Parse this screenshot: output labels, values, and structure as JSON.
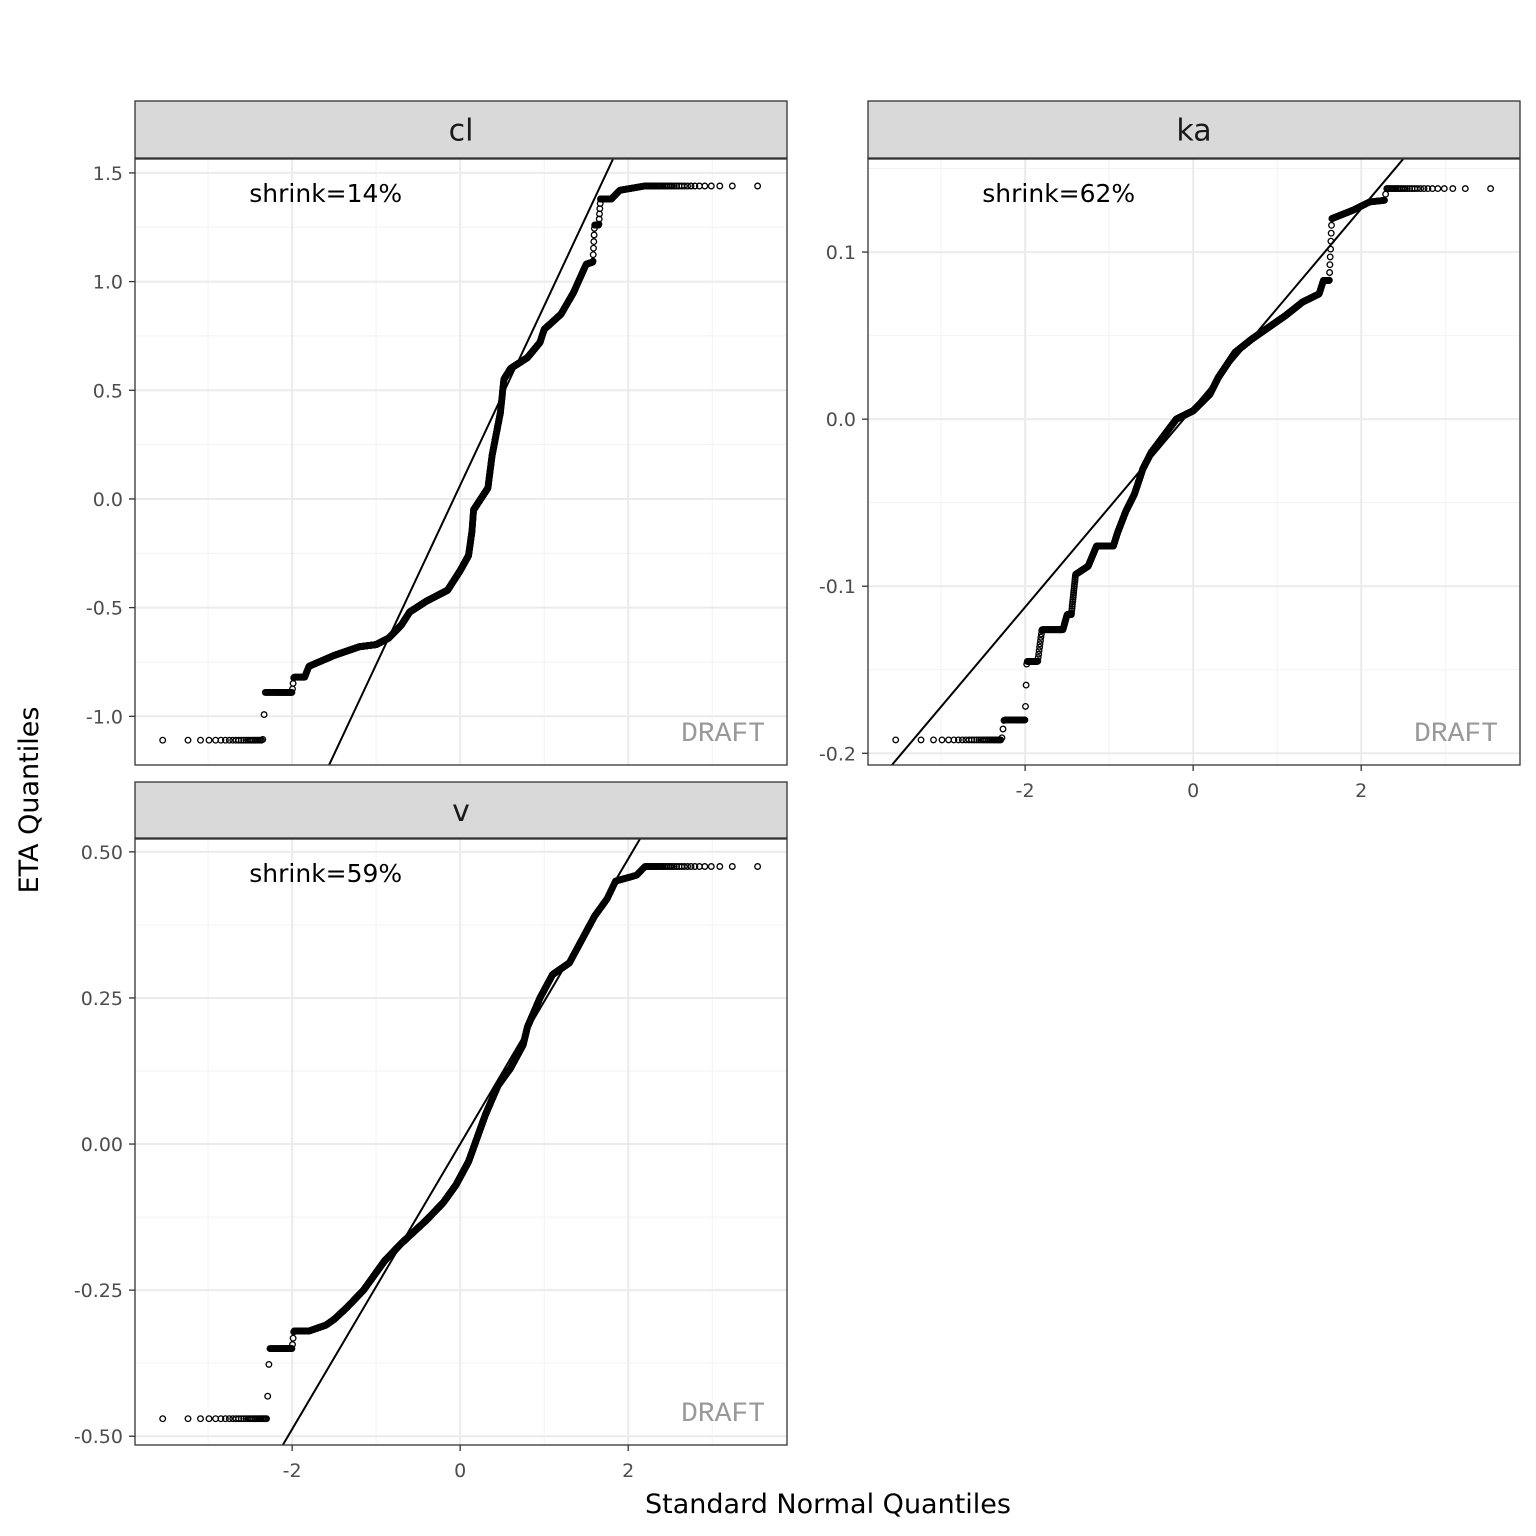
{
  "chart_data": {
    "type": "scatter",
    "subtype": "qq-plot-faceted",
    "xlabel": "Standard Normal Quantiles",
    "ylabel": "ETA Quantiles",
    "watermark": "DRAFT",
    "n_points": 2500,
    "xlim": [
      -3.87,
      3.89
    ],
    "x_ticks": [
      -2,
      0,
      2
    ],
    "x_tick_labels": [
      "-2",
      "0",
      "2"
    ],
    "x_minor": [
      -3,
      -1,
      1,
      3
    ],
    "panels": [
      {
        "name": "cl",
        "annotation": "shrink=14%",
        "ylim": [
          -1.224,
          1.564
        ],
        "y_ticks": [
          -1.0,
          -0.5,
          0.0,
          0.5,
          1.0,
          1.5
        ],
        "y_tick_labels": [
          "-1.0",
          "-0.5",
          "0.0",
          "0.5",
          "1.0",
          "1.5"
        ],
        "reference_line": {
          "intercept": 0.063,
          "slope": 0.825
        },
        "quantile_anchors": [
          [
            -3.6,
            -1.11
          ],
          [
            -2.35,
            -1.11
          ],
          [
            -2.32,
            -0.89
          ],
          [
            -2.0,
            -0.89
          ],
          [
            -1.98,
            -0.82
          ],
          [
            -1.85,
            -0.82
          ],
          [
            -1.8,
            -0.77
          ],
          [
            -1.5,
            -0.72
          ],
          [
            -1.35,
            -0.7
          ],
          [
            -1.2,
            -0.68
          ],
          [
            -1.0,
            -0.67
          ],
          [
            -0.85,
            -0.64
          ],
          [
            -0.7,
            -0.58
          ],
          [
            -0.6,
            -0.52
          ],
          [
            -0.4,
            -0.47
          ],
          [
            -0.25,
            -0.44
          ],
          [
            -0.15,
            -0.42
          ],
          [
            0.0,
            -0.33
          ],
          [
            0.1,
            -0.26
          ],
          [
            0.14,
            -0.15
          ],
          [
            0.16,
            -0.05
          ],
          [
            0.33,
            0.05
          ],
          [
            0.38,
            0.2
          ],
          [
            0.48,
            0.4
          ],
          [
            0.52,
            0.55
          ],
          [
            0.6,
            0.6
          ],
          [
            0.8,
            0.65
          ],
          [
            0.95,
            0.72
          ],
          [
            1.0,
            0.78
          ],
          [
            1.2,
            0.85
          ],
          [
            1.35,
            0.95
          ],
          [
            1.5,
            1.08
          ],
          [
            1.58,
            1.09
          ],
          [
            1.6,
            1.26
          ],
          [
            1.65,
            1.26
          ],
          [
            1.67,
            1.38
          ],
          [
            1.8,
            1.38
          ],
          [
            1.9,
            1.42
          ],
          [
            2.2,
            1.44
          ],
          [
            3.6,
            1.44
          ]
        ]
      },
      {
        "name": "ka",
        "annotation": "shrink=62%",
        "ylim": [
          -0.207,
          0.1557
        ],
        "y_ticks": [
          -0.2,
          -0.1,
          0.0,
          0.1
        ],
        "y_tick_labels": [
          "-0.2",
          "-0.1",
          "0.0",
          "0.1"
        ],
        "reference_line": {
          "intercept": 0.0067,
          "slope": 0.0596
        },
        "quantile_anchors": [
          [
            -3.6,
            -0.192
          ],
          [
            -2.28,
            -0.192
          ],
          [
            -2.25,
            -0.18
          ],
          [
            -2.0,
            -0.18
          ],
          [
            -1.98,
            -0.145
          ],
          [
            -1.85,
            -0.145
          ],
          [
            -1.8,
            -0.126
          ],
          [
            -1.55,
            -0.126
          ],
          [
            -1.5,
            -0.117
          ],
          [
            -1.45,
            -0.117
          ],
          [
            -1.4,
            -0.093
          ],
          [
            -1.25,
            -0.088
          ],
          [
            -1.15,
            -0.076
          ],
          [
            -0.95,
            -0.076
          ],
          [
            -0.9,
            -0.068
          ],
          [
            -0.8,
            -0.055
          ],
          [
            -0.7,
            -0.045
          ],
          [
            -0.6,
            -0.03
          ],
          [
            -0.5,
            -0.02
          ],
          [
            -0.35,
            -0.01
          ],
          [
            -0.2,
            0.0
          ],
          [
            0.0,
            0.005
          ],
          [
            0.2,
            0.015
          ],
          [
            0.3,
            0.025
          ],
          [
            0.5,
            0.04
          ],
          [
            0.7,
            0.048
          ],
          [
            0.9,
            0.055
          ],
          [
            1.1,
            0.062
          ],
          [
            1.3,
            0.07
          ],
          [
            1.5,
            0.075
          ],
          [
            1.55,
            0.083
          ],
          [
            1.62,
            0.083
          ],
          [
            1.65,
            0.12
          ],
          [
            1.9,
            0.125
          ],
          [
            2.1,
            0.13
          ],
          [
            2.28,
            0.131
          ],
          [
            2.3,
            0.138
          ],
          [
            3.6,
            0.138
          ]
        ]
      },
      {
        "name": "v",
        "annotation": "shrink=59%",
        "ylim": [
          -0.515,
          0.522
        ],
        "y_ticks": [
          -0.5,
          -0.25,
          0.0,
          0.25,
          0.5
        ],
        "y_tick_labels": [
          "-0.50",
          "-0.25",
          "0.00",
          "0.25",
          "0.50"
        ],
        "reference_line": {
          "intercept": 0.0,
          "slope": 0.244
        },
        "quantile_anchors": [
          [
            -3.6,
            -0.47
          ],
          [
            -2.3,
            -0.47
          ],
          [
            -2.27,
            -0.35
          ],
          [
            -2.0,
            -0.35
          ],
          [
            -1.98,
            -0.32
          ],
          [
            -1.8,
            -0.32
          ],
          [
            -1.6,
            -0.31
          ],
          [
            -1.5,
            -0.3
          ],
          [
            -1.35,
            -0.28
          ],
          [
            -1.15,
            -0.25
          ],
          [
            -0.9,
            -0.2
          ],
          [
            -0.7,
            -0.17
          ],
          [
            -0.4,
            -0.13
          ],
          [
            -0.2,
            -0.1
          ],
          [
            -0.05,
            -0.07
          ],
          [
            0.1,
            -0.03
          ],
          [
            0.3,
            0.05
          ],
          [
            0.45,
            0.1
          ],
          [
            0.6,
            0.13
          ],
          [
            0.75,
            0.17
          ],
          [
            0.8,
            0.2
          ],
          [
            0.95,
            0.25
          ],
          [
            1.1,
            0.29
          ],
          [
            1.3,
            0.31
          ],
          [
            1.45,
            0.35
          ],
          [
            1.6,
            0.39
          ],
          [
            1.75,
            0.42
          ],
          [
            1.85,
            0.45
          ],
          [
            2.1,
            0.46
          ],
          [
            2.2,
            0.475
          ],
          [
            3.6,
            0.475
          ]
        ]
      }
    ]
  }
}
